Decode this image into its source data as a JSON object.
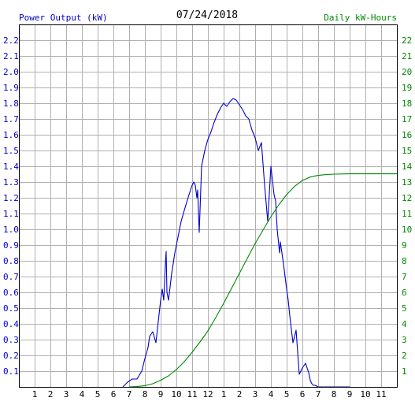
{
  "chart_data": {
    "type": "line",
    "title": "07/24/2018",
    "left_axis_label": "Power Output (kW)",
    "right_axis_label": "Daily kW-Hours",
    "x_tick_labels": [
      "1",
      "2",
      "3",
      "4",
      "5",
      "6",
      "7",
      "8",
      "9",
      "10",
      "11",
      "12",
      "1",
      "2",
      "3",
      "4",
      "5",
      "6",
      "7",
      "8",
      "9",
      "10",
      "11"
    ],
    "xlim": [
      0,
      24
    ],
    "y_left_lim": [
      0,
      2.3
    ],
    "y_left_ticks": [
      0.1,
      0.2,
      0.3,
      0.4,
      0.5,
      0.6,
      0.7,
      0.8,
      0.9,
      1.0,
      1.1,
      1.2,
      1.3,
      1.4,
      1.5,
      1.6,
      1.7,
      1.8,
      1.9,
      2.0,
      2.1,
      2.2
    ],
    "y_right_lim": [
      0,
      23
    ],
    "y_right_ticks": [
      1,
      2,
      3,
      4,
      5,
      6,
      7,
      8,
      9,
      10,
      11,
      12,
      13,
      14,
      15,
      16,
      17,
      18,
      19,
      20,
      21,
      22
    ],
    "grid": true,
    "colors": {
      "power": "#0000cc",
      "energy": "#008800",
      "left_axis_text": "#0000cc",
      "right_axis_text": "#008800",
      "title_text": "#000000",
      "grid": "#b0b0b0"
    },
    "series": [
      {
        "name": "Power Output (kW)",
        "axis": "left",
        "x": [
          6.6,
          6.9,
          7.2,
          7.5,
          7.8,
          8.0,
          8.2,
          8.3,
          8.5,
          8.7,
          9.0,
          9.1,
          9.2,
          9.3,
          9.35,
          9.4,
          9.5,
          9.7,
          9.9,
          10.1,
          10.3,
          10.5,
          10.8,
          11.0,
          11.1,
          11.2,
          11.3,
          11.35,
          11.45,
          11.6,
          11.8,
          12.0,
          12.2,
          12.4,
          12.6,
          12.8,
          13.0,
          13.2,
          13.4,
          13.6,
          13.8,
          14.0,
          14.2,
          14.4,
          14.6,
          14.8,
          15.0,
          15.2,
          15.4,
          15.6,
          15.8,
          16.0,
          16.2,
          16.3,
          16.4,
          16.45,
          16.55,
          16.6,
          16.7,
          16.8,
          16.9,
          17.0,
          17.1,
          17.2,
          17.4,
          17.6,
          17.8,
          18.0,
          18.2,
          18.4,
          18.5,
          18.6,
          18.7,
          18.8,
          19.0,
          19.1,
          19.2,
          19.3,
          19.4,
          19.6,
          19.8,
          20.0,
          20.2,
          20.5,
          21.0
        ],
        "y": [
          0.0,
          0.03,
          0.05,
          0.05,
          0.1,
          0.18,
          0.25,
          0.32,
          0.35,
          0.28,
          0.55,
          0.62,
          0.55,
          0.78,
          0.86,
          0.6,
          0.55,
          0.72,
          0.85,
          0.95,
          1.05,
          1.12,
          1.22,
          1.28,
          1.3,
          1.28,
          1.2,
          1.25,
          0.98,
          1.4,
          1.5,
          1.57,
          1.62,
          1.68,
          1.73,
          1.77,
          1.8,
          1.78,
          1.81,
          1.83,
          1.82,
          1.79,
          1.76,
          1.72,
          1.7,
          1.63,
          1.58,
          1.5,
          1.55,
          1.28,
          1.05,
          1.4,
          1.22,
          1.18,
          1.0,
          0.95,
          0.85,
          0.92,
          0.85,
          0.78,
          0.7,
          0.62,
          0.55,
          0.45,
          0.28,
          0.36,
          0.08,
          0.12,
          0.15,
          0.09,
          0.04,
          0.02,
          0.01,
          0.01,
          0.0,
          0.0,
          0.0,
          0.0,
          0.0,
          0.0,
          0.0,
          0.0,
          0.0,
          0.0,
          0.0
        ]
      },
      {
        "name": "Daily kW-Hours",
        "axis": "right",
        "x": [
          7.0,
          7.5,
          8.0,
          8.5,
          9.0,
          9.5,
          10.0,
          10.5,
          11.0,
          11.5,
          12.0,
          12.5,
          13.0,
          13.5,
          14.0,
          14.5,
          15.0,
          15.5,
          16.0,
          16.5,
          17.0,
          17.5,
          18.0,
          18.5,
          19.0,
          19.5,
          20.0,
          21.0,
          22.0,
          23.0,
          24.0
        ],
        "y": [
          0.0,
          0.02,
          0.08,
          0.2,
          0.42,
          0.7,
          1.1,
          1.6,
          2.2,
          2.85,
          3.55,
          4.4,
          5.3,
          6.25,
          7.2,
          8.15,
          9.1,
          9.95,
          10.8,
          11.55,
          12.2,
          12.72,
          13.1,
          13.32,
          13.42,
          13.47,
          13.5,
          13.52,
          13.52,
          13.52,
          13.52
        ]
      }
    ]
  }
}
